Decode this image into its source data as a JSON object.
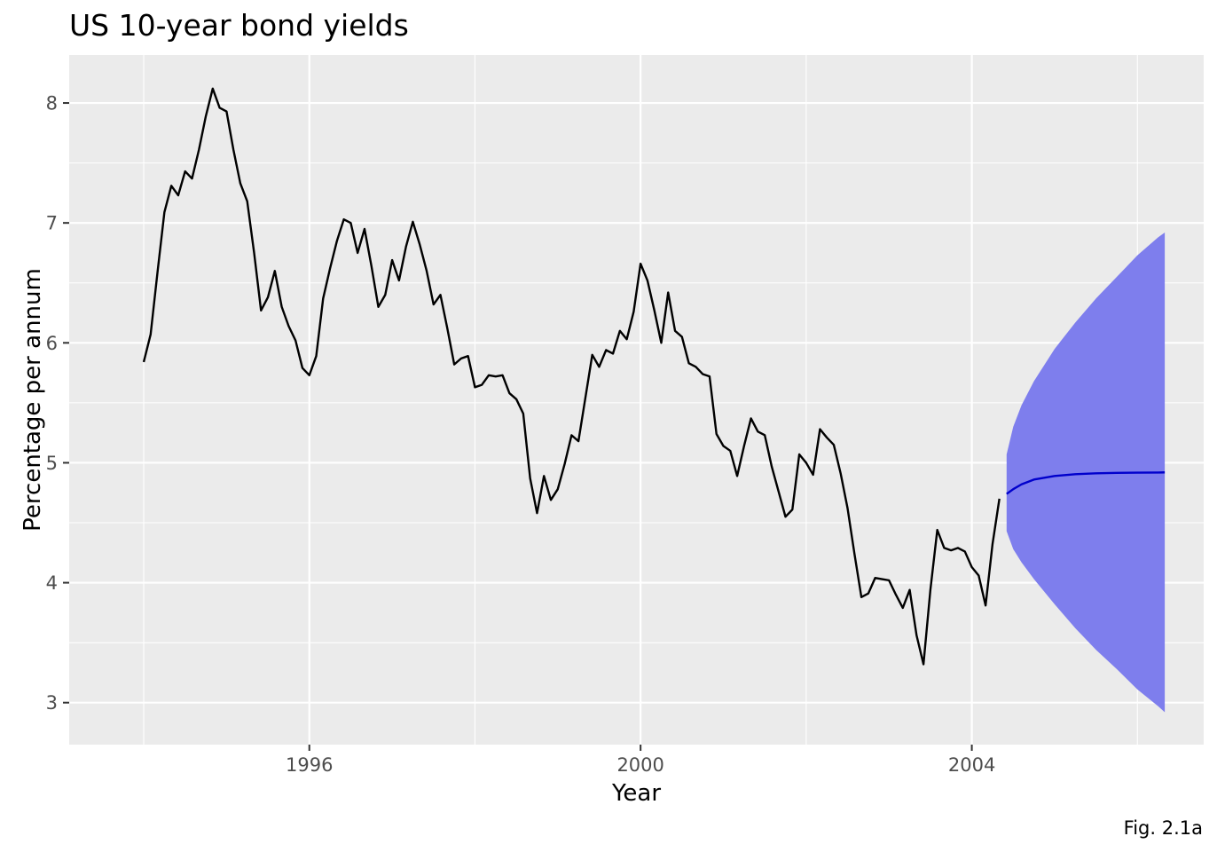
{
  "chart_data": {
    "type": "line",
    "title": "US 10-year bond yields",
    "xlabel": "Year",
    "ylabel": "Percentage per annum",
    "caption": "Fig. 2.1a",
    "xlim": [
      1993.1,
      2006.8
    ],
    "ylim": [
      2.65,
      8.4
    ],
    "x_ticks": [
      1996,
      2000,
      2004
    ],
    "x_tick_labels": [
      "1996",
      "2000",
      "2004"
    ],
    "y_ticks": [
      3,
      4,
      5,
      6,
      7,
      8
    ],
    "y_tick_labels": [
      "3",
      "4",
      "5",
      "6",
      "7",
      "8"
    ],
    "grid": true,
    "panel_background": "#ebebeb",
    "series": [
      {
        "role": "observed",
        "color": "#000000",
        "x_start": 1994.0,
        "x_step": 0.08333,
        "values": [
          5.84,
          6.07,
          6.59,
          7.09,
          7.31,
          7.23,
          7.43,
          7.37,
          7.61,
          7.89,
          8.12,
          7.96,
          7.93,
          7.61,
          7.33,
          7.18,
          6.75,
          6.27,
          6.38,
          6.6,
          6.3,
          6.14,
          6.02,
          5.79,
          5.73,
          5.89,
          6.37,
          6.62,
          6.85,
          7.03,
          7.0,
          6.75,
          6.95,
          6.64,
          6.3,
          6.4,
          6.69,
          6.52,
          6.8,
          7.01,
          6.82,
          6.6,
          6.32,
          6.4,
          6.12,
          5.82,
          5.87,
          5.89,
          5.63,
          5.65,
          5.73,
          5.72,
          5.73,
          5.58,
          5.53,
          5.41,
          4.87,
          4.58,
          4.89,
          4.69,
          4.78,
          4.99,
          5.23,
          5.18,
          5.54,
          5.9,
          5.8,
          5.94,
          5.91,
          6.1,
          6.03,
          6.26,
          6.66,
          6.52,
          6.27,
          6.0,
          6.42,
          6.1,
          6.05,
          5.83,
          5.8,
          5.74,
          5.72,
          5.24,
          5.14,
          5.1,
          4.89,
          5.14,
          5.37,
          5.26,
          5.23,
          4.97,
          4.76,
          4.55,
          4.61,
          5.07,
          5.0,
          4.9,
          5.28,
          5.21,
          5.15,
          4.91,
          4.62,
          4.24,
          3.88,
          3.91,
          4.04,
          4.03,
          4.02,
          3.9,
          3.79,
          3.94,
          3.56,
          3.32,
          3.94,
          4.44,
          4.29,
          4.27,
          4.29,
          4.26,
          4.13,
          4.06,
          3.81,
          4.32,
          4.7
        ]
      },
      {
        "role": "forecast",
        "color": "#0000cc",
        "band_color": "#7e7eed",
        "x": [
          2004.42,
          2004.5,
          2004.6,
          2004.75,
          2005.0,
          2005.25,
          2005.5,
          2005.75,
          2006.0,
          2006.25,
          2006.33
        ],
        "values": [
          4.74,
          4.78,
          4.82,
          4.86,
          4.89,
          4.905,
          4.912,
          4.916,
          4.918,
          4.919,
          4.92
        ],
        "upper": [
          5.07,
          5.3,
          5.48,
          5.68,
          5.95,
          6.17,
          6.37,
          6.55,
          6.73,
          6.88,
          6.92
        ],
        "lower": [
          4.43,
          4.28,
          4.17,
          4.03,
          3.82,
          3.62,
          3.44,
          3.28,
          3.11,
          2.97,
          2.92
        ]
      }
    ]
  }
}
